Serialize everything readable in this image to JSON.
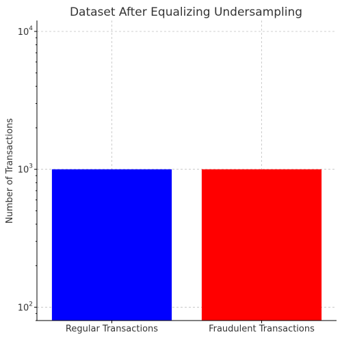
{
  "chart_data": {
    "type": "bar",
    "title": "Dataset After Equalizing Undersampling",
    "xlabel": "",
    "ylabel": "Number of Transactions",
    "yscale": "log",
    "ylim": [
      80,
      12000
    ],
    "grid": true,
    "categories": [
      "Regular Transactions",
      "Fraudulent Transactions"
    ],
    "values": [
      1000,
      1000
    ],
    "colors": [
      "#0000ff",
      "#ff0000"
    ],
    "y_ticks": [
      {
        "value": 100,
        "base": "10",
        "exp": "2"
      },
      {
        "value": 1000,
        "base": "10",
        "exp": "3"
      },
      {
        "value": 10000,
        "base": "10",
        "exp": "4"
      }
    ]
  }
}
